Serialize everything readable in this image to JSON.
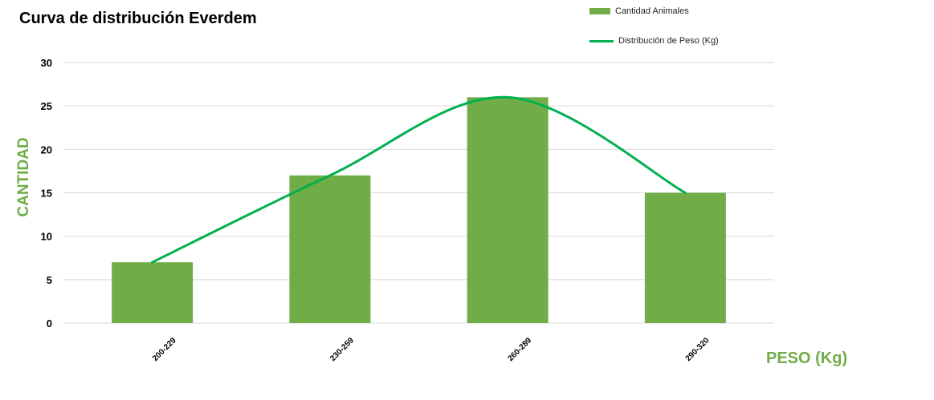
{
  "chart_data": {
    "type": "bar",
    "title": "Curva de distribución Everdem",
    "xlabel": "PESO (Kg)",
    "ylabel": "CANTIDAD",
    "categories": [
      "200-229",
      "230-259",
      "260-289",
      "290-320"
    ],
    "ylim": [
      0,
      30
    ],
    "yticks": [
      0,
      5,
      10,
      15,
      20,
      25,
      30
    ],
    "grid": true,
    "legend_position": "top-right",
    "series": [
      {
        "name": "Cantidad Animales",
        "kind": "bar",
        "color": "#70ad47",
        "values": [
          7,
          17,
          26,
          15
        ]
      },
      {
        "name": "Distribución de Peso (Kg)",
        "kind": "line",
        "color": "#00b050",
        "values": [
          7,
          17,
          26,
          15
        ]
      }
    ]
  }
}
